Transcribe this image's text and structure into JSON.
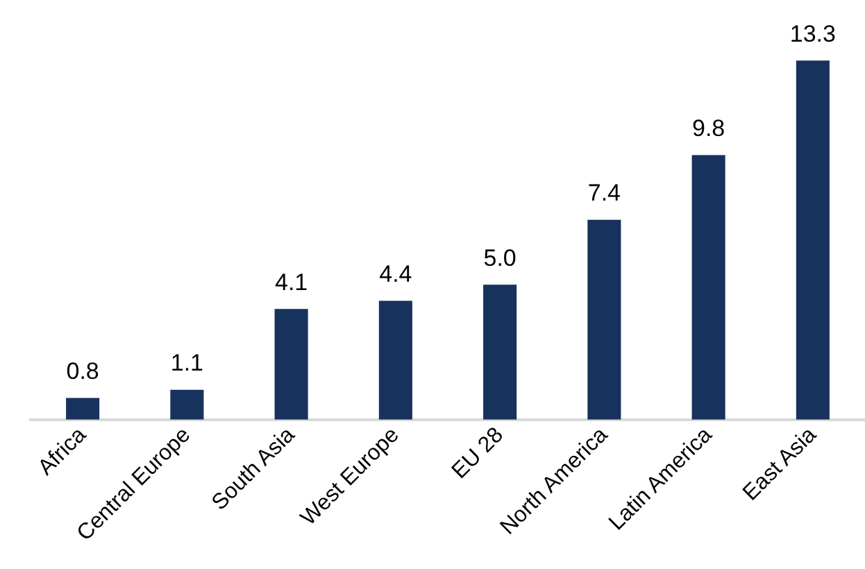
{
  "chart_data": {
    "type": "bar",
    "categories": [
      "Africa",
      "Central Europe",
      "South Asia",
      "West Europe",
      "EU 28",
      "North America",
      "Latin America",
      "East Asia"
    ],
    "values": [
      0.8,
      1.1,
      4.1,
      4.4,
      5.0,
      7.4,
      9.8,
      13.3
    ],
    "value_labels": [
      "0.8",
      "1.1",
      "4.1",
      "4.4",
      "5.0",
      "7.4",
      "9.8",
      "13.3"
    ],
    "color": "#17325c",
    "tick_labels": "x",
    "grid": false,
    "legend": false
  }
}
